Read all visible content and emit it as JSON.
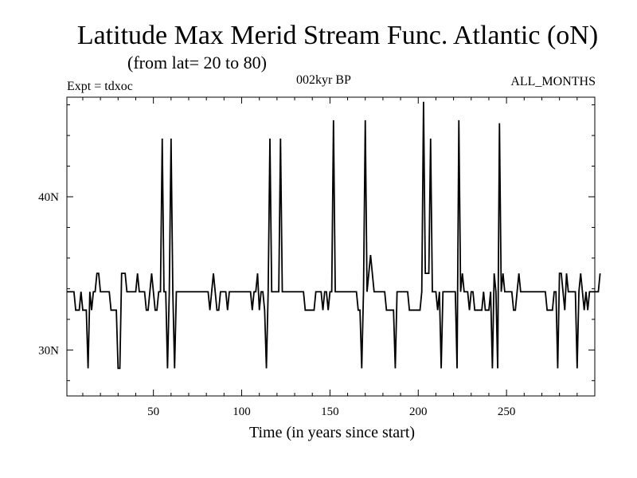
{
  "header": {
    "title": "Latitude Max Merid Stream Func. Atlantic (oN)",
    "subtitle": "(from lat= 20 to 80)",
    "expt": "Expt = tdxoc",
    "period": "002kyr BP",
    "months": "ALL_MONTHS"
  },
  "chart_data": {
    "type": "line",
    "title": "Latitude Max Merid Stream Func. Atlantic (oN)",
    "xlabel": "Time (in years since start)",
    "ylabel": "",
    "xlim": [
      1,
      300
    ],
    "ylim": [
      27,
      46.5
    ],
    "x_ticks": [
      50,
      100,
      150,
      200,
      250
    ],
    "x_tick_labels": [
      "50",
      "100",
      "150",
      "200",
      "250"
    ],
    "y_ticks": [
      30,
      40
    ],
    "y_tick_labels": [
      "30N",
      "40N"
    ],
    "series": [
      {
        "x_start": 1,
        "x_step": 1,
        "values": [
          33.8,
          33.8,
          33.8,
          33.8,
          33.8,
          32.6,
          32.6,
          32.6,
          33.8,
          32.6,
          32.6,
          32.6,
          28.8,
          33.8,
          32.6,
          33.8,
          33.8,
          35,
          35,
          33.8,
          33.8,
          33.8,
          33.8,
          33.8,
          33.8,
          32.6,
          32.6,
          32.6,
          32.6,
          28.8,
          28.8,
          35,
          35,
          35,
          33.8,
          33.8,
          33.8,
          33.8,
          33.8,
          33.8,
          35,
          33.8,
          33.8,
          33.8,
          33.8,
          32.6,
          32.6,
          33.8,
          35,
          33.8,
          32.6,
          32.6,
          33.8,
          33.8,
          43.8,
          33.8,
          33.8,
          28.8,
          33.8,
          43.8,
          33.8,
          28.8,
          33.8,
          33.8,
          33.8,
          33.8,
          33.8,
          33.8,
          33.8,
          33.8,
          33.8,
          33.8,
          33.8,
          33.8,
          33.8,
          33.8,
          33.8,
          33.8,
          33.8,
          33.8,
          33.8,
          32.6,
          33.8,
          35,
          33.8,
          32.6,
          32.6,
          33.8,
          33.8,
          33.8,
          33.8,
          32.6,
          33.8,
          33.8,
          33.8,
          33.8,
          33.8,
          33.8,
          33.8,
          33.8,
          33.8,
          33.8,
          33.8,
          33.8,
          33.8,
          32.6,
          33.8,
          33.8,
          35,
          32.6,
          33.8,
          33.8,
          32.6,
          28.8,
          33.8,
          43.8,
          33.8,
          33.8,
          33.8,
          33.8,
          33.8,
          43.8,
          33.8,
          33.8,
          33.8,
          33.8,
          33.8,
          33.8,
          33.8,
          33.8,
          33.8,
          33.8,
          33.8,
          33.8,
          33.8,
          32.6,
          32.6,
          32.6,
          32.6,
          32.6,
          32.6,
          33.8,
          33.8,
          33.8,
          33.8,
          32.6,
          33.8,
          33.8,
          32.6,
          33.8,
          33.8,
          45,
          33.8,
          33.8,
          33.8,
          33.8,
          33.8,
          33.8,
          33.8,
          33.8,
          33.8,
          33.8,
          33.8,
          33.8,
          33.8,
          32.6,
          32.6,
          28.8,
          33.8,
          45,
          33.8,
          35,
          36.2,
          35,
          33.8,
          33.8,
          33.8,
          33.8,
          33.8,
          33.8,
          33.8,
          32.6,
          32.6,
          32.6,
          32.6,
          32.6,
          28.8,
          33.8,
          33.8,
          33.8,
          33.8,
          33.8,
          33.8,
          33.8,
          32.6,
          32.6,
          32.6,
          32.6,
          32.6,
          32.6,
          32.6,
          33.8,
          46.2,
          35,
          35,
          35,
          43.8,
          33.8,
          33.8,
          33.8,
          32.6,
          33.8,
          28.8,
          33.8,
          33.8,
          33.8,
          33.8,
          33.8,
          33.8,
          33.8,
          33.8,
          28.8,
          45,
          33.8,
          35,
          33.8,
          33.8,
          33.8,
          32.6,
          33.8,
          33.8,
          32.6,
          32.6,
          32.6,
          32.6,
          32.6,
          33.8,
          32.6,
          32.6,
          32.6,
          33.8,
          28.8,
          35,
          33.8,
          28.8,
          44.8,
          33.8,
          35,
          33.8,
          33.8,
          33.8,
          33.8,
          33.8,
          32.6,
          32.6,
          33.8,
          35,
          33.8,
          33.8,
          33.8,
          33.8,
          33.8,
          33.8,
          33.8,
          33.8,
          33.8,
          33.8,
          33.8,
          33.8,
          33.8,
          33.8,
          33.8,
          32.6,
          32.6,
          32.6,
          32.6,
          33.8,
          33.8,
          28.8,
          35,
          35,
          33.8,
          32.6,
          35,
          33.8,
          33.8,
          33.8,
          33.8,
          33.8,
          28.8,
          33.8,
          35,
          33.8,
          32.6,
          33.8,
          32.6,
          33.8,
          33.8,
          33.8,
          33.8,
          33.8,
          33.8,
          35
        ]
      }
    ],
    "grid": false
  }
}
